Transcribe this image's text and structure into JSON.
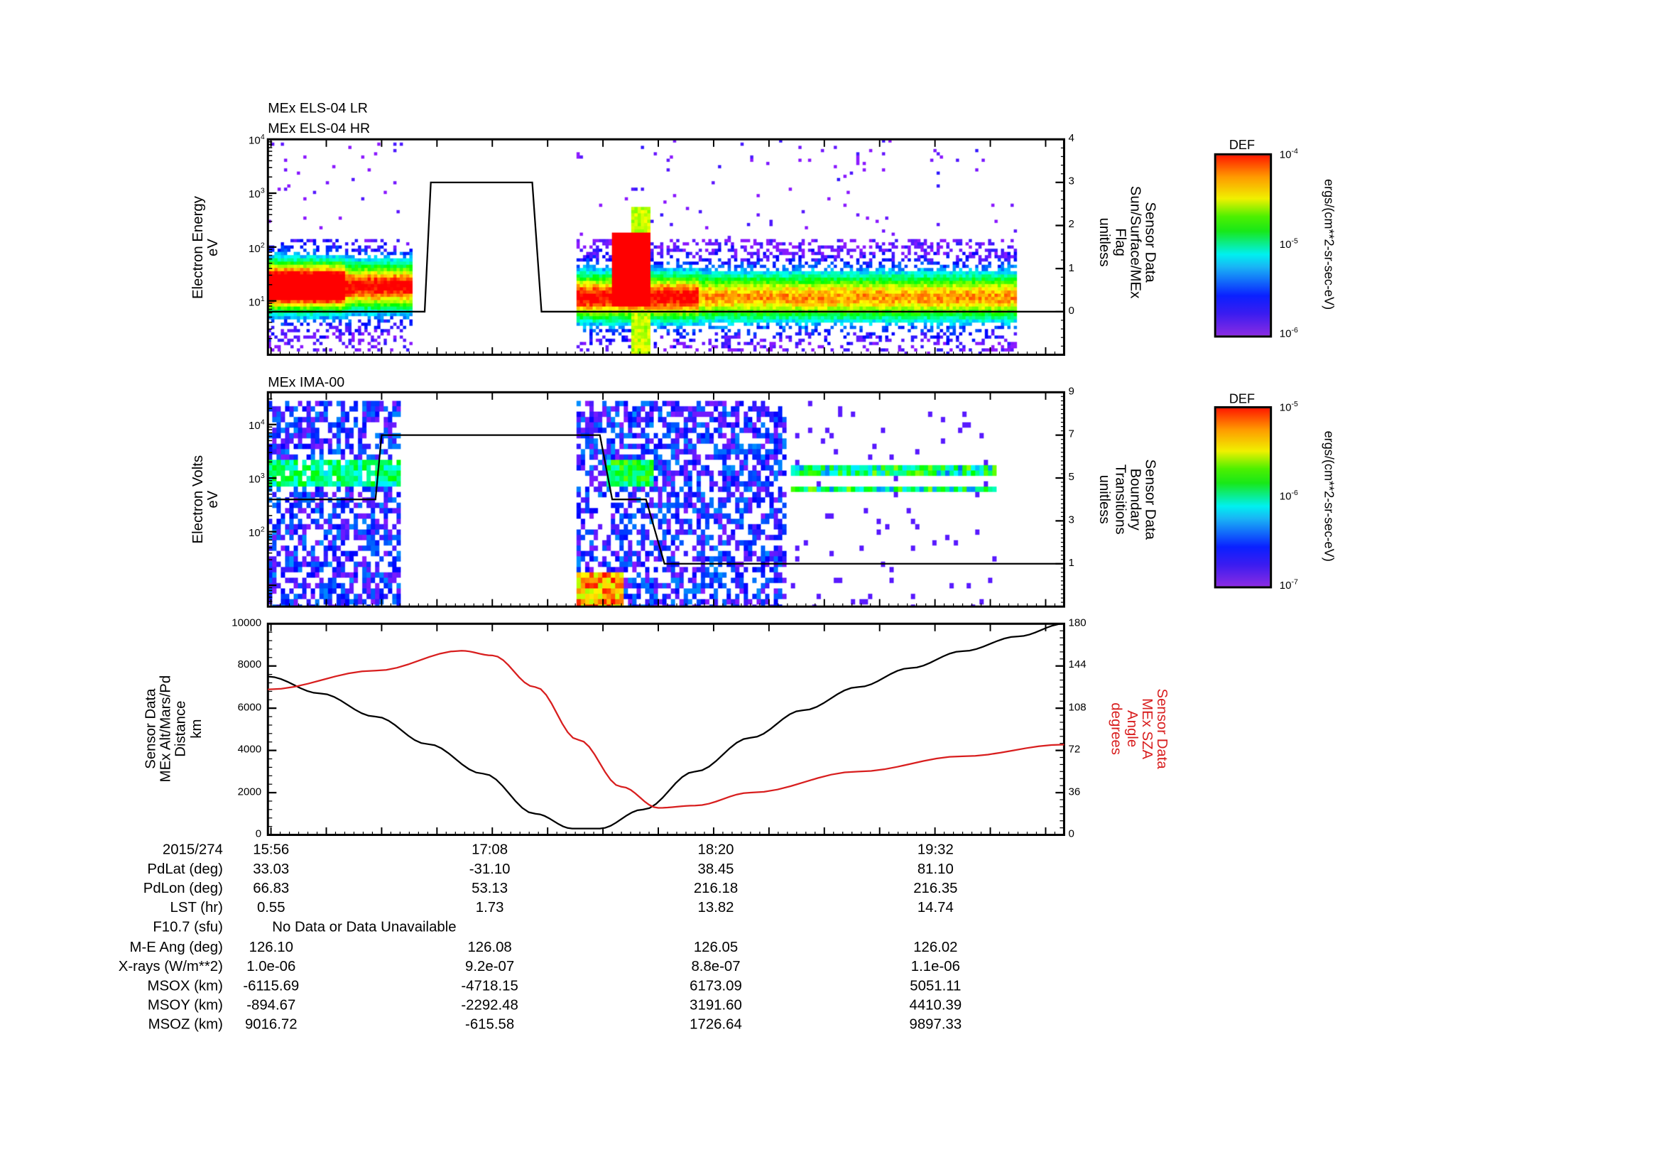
{
  "panel1": {
    "titles": [
      "MEx ELS-04 LR",
      "MEx ELS-04 HR"
    ],
    "ylabel": [
      "Electron Energy",
      "eV"
    ],
    "ylabel_right": [
      "Sensor Data",
      "Sun/Surface/MEx",
      "Flag",
      "unitless"
    ]
  },
  "panel2": {
    "title": "MEx IMA-00",
    "ylabel": [
      "Electron Volts",
      "eV"
    ],
    "ylabel_right": [
      "Sensor Data",
      "Boundary",
      "Transitions",
      "unitless"
    ]
  },
  "panel3": {
    "ylabel": [
      "Sensor Data",
      "MEx Alt/Mars/Pd",
      "Distance",
      "km"
    ],
    "ylabel_right": [
      "Sensor Data",
      "MEx SZA",
      "Angle",
      "degrees"
    ],
    "right_color": "#d81e1e"
  },
  "colorbar1": {
    "title": "DEF",
    "ticks": [
      {
        "b": "10",
        "e": "-4"
      },
      {
        "b": "10",
        "e": "-5"
      },
      {
        "b": "10",
        "e": "-6"
      }
    ],
    "units": "ergs/(cm**2-sr-sec-eV)"
  },
  "colorbar2": {
    "title": "DEF",
    "ticks": [
      {
        "b": "10",
        "e": "-5"
      },
      {
        "b": "10",
        "e": "-6"
      },
      {
        "b": "10",
        "e": "-7"
      }
    ],
    "units": "ergs/(cm**2-sr-sec-eV)"
  },
  "table": {
    "rows": [
      {
        "label": "2015/274",
        "values": [
          "15:56",
          "17:08",
          "18:20",
          "19:32"
        ]
      },
      {
        "label": "PdLat (deg)",
        "values": [
          "33.03",
          "-31.10",
          "38.45",
          "81.10"
        ]
      },
      {
        "label": "PdLon (deg)",
        "values": [
          "66.83",
          "53.13",
          "216.18",
          "216.35"
        ]
      },
      {
        "label": "LST (hr)",
        "values": [
          "0.55",
          "1.73",
          "13.82",
          "14.74"
        ]
      },
      {
        "label": "F10.7 (sfu)",
        "values": [
          "No Data or Data Unavailable"
        ]
      },
      {
        "label": "M-E Ang (deg)",
        "values": [
          "126.10",
          "126.08",
          "126.05",
          "126.02"
        ]
      },
      {
        "label": "X-rays (W/m**2)",
        "values": [
          "1.0e-06",
          "9.2e-07",
          "8.8e-07",
          "1.1e-06"
        ]
      },
      {
        "label": "MSOX (km)",
        "values": [
          "-6115.69",
          "-4718.15",
          "6173.09",
          "5051.11"
        ]
      },
      {
        "label": "MSOY (km)",
        "values": [
          "-894.67",
          "-2292.48",
          "3191.60",
          "4410.39"
        ]
      },
      {
        "label": "MSOZ (km)",
        "values": [
          "9016.72",
          "-615.58",
          "1726.64",
          "9897.33"
        ]
      }
    ]
  },
  "chart_data": [
    {
      "type": "heatmap",
      "title": "MEx ELS-04 LR / HR",
      "ylabel": "Electron Energy (eV)",
      "yscale": "log",
      "ylim": [
        1,
        10000
      ],
      "yticks": [
        {
          "b": "10",
          "e": "1"
        },
        {
          "b": "10",
          "e": "2"
        },
        {
          "b": "10",
          "e": "3"
        },
        {
          "b": "10",
          "e": "4"
        }
      ],
      "xlim_minutes_after_1555": [
        0,
        259
      ],
      "data_segments_minutes": [
        [
          0,
          47
        ],
        [
          100,
          243
        ]
      ],
      "overlay": {
        "name": "Sun/Surface/MEx Flag",
        "ylim": [
          -1,
          4
        ],
        "yticks": [
          "0",
          "1",
          "2",
          "3",
          "4"
        ],
        "x": [
          0,
          51,
          53,
          86,
          89,
          259
        ],
        "y": [
          0,
          0,
          3,
          3,
          0,
          0
        ]
      }
    },
    {
      "type": "heatmap",
      "title": "MEx IMA-00",
      "ylabel": "Electron Volts (eV)",
      "yscale": "log",
      "ylim": [
        4,
        40000
      ],
      "yticks": [
        {
          "b": "10",
          "e": "2"
        },
        {
          "b": "10",
          "e": "3"
        },
        {
          "b": "10",
          "e": "4"
        }
      ],
      "data_segments_minutes": [
        [
          0,
          43
        ],
        [
          100,
          168
        ],
        [
          170,
          236
        ]
      ],
      "overlay": {
        "name": "Boundary Transitions",
        "ylim": [
          -1,
          9
        ],
        "yticks": [
          "1",
          "3",
          "5",
          "7",
          "9"
        ],
        "x": [
          0,
          35,
          37,
          108,
          112,
          123,
          129,
          259
        ],
        "y": [
          4,
          4,
          7,
          7,
          4,
          4,
          1,
          1
        ]
      }
    },
    {
      "type": "line",
      "xlim_minutes_after_1555": [
        0,
        259
      ],
      "ylim": [
        0,
        10000
      ],
      "ylim_right": [
        0,
        180
      ],
      "yticks": [
        "0",
        "2000",
        "4000",
        "6000",
        "8000",
        "10000"
      ],
      "yticks_right": [
        "0",
        "36",
        "72",
        "108",
        "144",
        "180"
      ],
      "xticks": [
        "15:56",
        "17:08",
        "18:20",
        "19:32"
      ],
      "series": [
        {
          "name": "MEx Alt/Mars/Pd Distance (km)",
          "axis": "left",
          "color": "#000000",
          "x": [
            0,
            17,
            35,
            52,
            70,
            87,
            99,
            108,
            122,
            139,
            157,
            174,
            192,
            209,
            226,
            244,
            259
          ],
          "y": [
            7500,
            6700,
            5600,
            4300,
            2900,
            1000,
            300,
            300,
            1200,
            3000,
            4600,
            5900,
            7000,
            7900,
            8700,
            9400,
            10000
          ]
        },
        {
          "name": "MEx SZA Angle (degrees)",
          "axis": "right",
          "color": "#d81e1e",
          "x": [
            0,
            35,
            63,
            73,
            87,
            101,
            115,
            127,
            139,
            157,
            192,
            226,
            259
          ],
          "y": [
            124,
            140,
            157,
            153,
            126,
            81,
            41,
            23,
            25,
            36,
            54,
            67,
            77
          ]
        }
      ]
    }
  ]
}
